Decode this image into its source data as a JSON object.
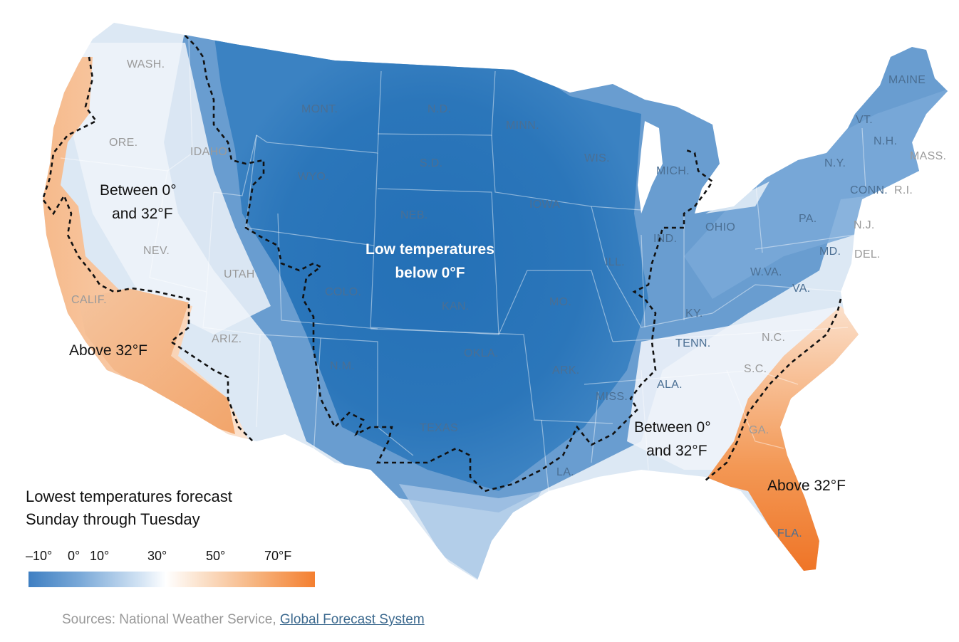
{
  "states": [
    "WASH.",
    "ORE.",
    "IDAHO",
    "MONT.",
    "N.D.",
    "MINN.",
    "S.D.",
    "WYO.",
    "WIS.",
    "MICH.",
    "MAINE",
    "VT.",
    "N.H.",
    "MASS.",
    "N.Y.",
    "CONN.",
    "R.I.",
    "NEB.",
    "IOWA",
    "NEV.",
    "UTAH",
    "PA.",
    "N.J.",
    "OHIO",
    "IND.",
    "ILL.",
    "MD.",
    "DEL.",
    "W.VA.",
    "VA.",
    "CALIF.",
    "COLO.",
    "KAN.",
    "MO.",
    "KY.",
    "ARIZ.",
    "TENN.",
    "N.C.",
    "OKLA.",
    "N.M.",
    "ARK.",
    "S.C.",
    "ALA.",
    "MISS.",
    "GA.",
    "TEXAS",
    "LA.",
    "FLA."
  ],
  "annotations": {
    "west_between_1": "Between 0°",
    "west_between_2": "and 32°F",
    "low_1": "Low temperatures",
    "low_2": "below 0°F",
    "west_above": "Above 32°F",
    "se_between_1": "Between 0°",
    "se_between_2": "and 32°F",
    "se_above": "Above 32°F"
  },
  "legend": {
    "title_line1": "Lowest temperatures forecast",
    "title_line2": "Sunday through Tuesday",
    "ticks": [
      "–10°",
      "0°",
      "10°",
      "30°",
      "50°",
      "70°F"
    ],
    "colors": {
      "cold": "#2b74b8",
      "mid": "#ffffff",
      "warm": "#f47f30"
    }
  },
  "sources": {
    "prefix": "Sources: National Weather Service,",
    "link": "Global Forecast System"
  }
}
